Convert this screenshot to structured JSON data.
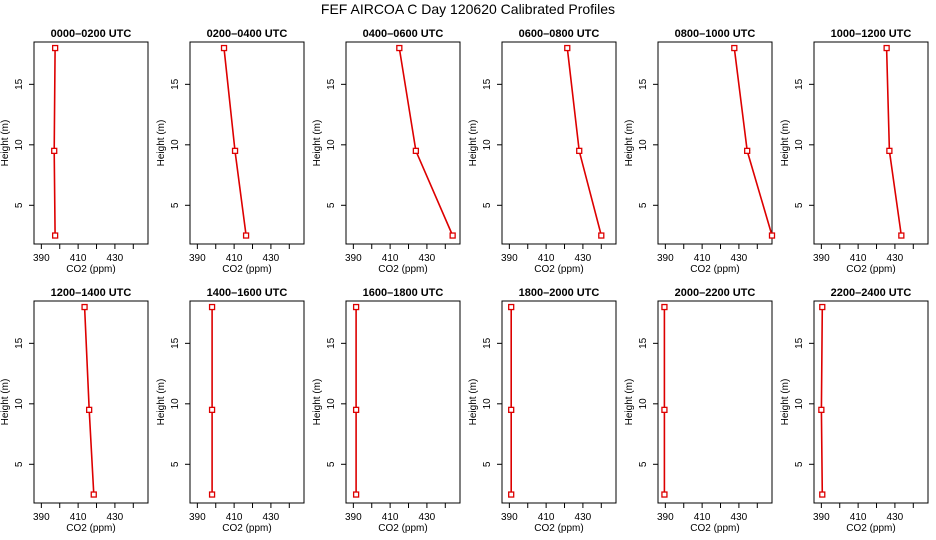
{
  "page": {
    "title": "FEF AIRCOA C  Day 120620  Calibrated Profiles"
  },
  "colors": {
    "series": "#dd0000",
    "axis": "#000000",
    "background": "#ffffff"
  },
  "chart_data": [
    {
      "type": "line",
      "title": "0000–0200 UTC",
      "xlabel": "CO2 (ppm)",
      "ylabel": "Height (m)",
      "xlim": [
        386,
        448
      ],
      "ylim": [
        1.8,
        18.5
      ],
      "xticks": [
        390,
        410,
        430
      ],
      "yticks": [
        5,
        10,
        15
      ],
      "grid": false,
      "series": [
        {
          "x": [
            397.5,
            397.0,
            397.5
          ],
          "y": [
            2.5,
            9.5,
            18.0
          ]
        }
      ]
    },
    {
      "type": "line",
      "title": "0200–0400 UTC",
      "xlabel": "CO2 (ppm)",
      "ylabel": "Height (m)",
      "xlim": [
        386,
        448
      ],
      "ylim": [
        1.8,
        18.5
      ],
      "xticks": [
        390,
        410,
        430
      ],
      "yticks": [
        5,
        10,
        15
      ],
      "grid": false,
      "series": [
        {
          "x": [
            416.5,
            410.5,
            404.5
          ],
          "y": [
            2.5,
            9.5,
            18.0
          ]
        }
      ]
    },
    {
      "type": "line",
      "title": "0400–0600 UTC",
      "xlabel": "CO2 (ppm)",
      "ylabel": "Height (m)",
      "xlim": [
        386,
        448
      ],
      "ylim": [
        1.8,
        18.5
      ],
      "xticks": [
        390,
        410,
        430
      ],
      "yticks": [
        5,
        10,
        15
      ],
      "grid": false,
      "series": [
        {
          "x": [
            444.0,
            424.0,
            415.0
          ],
          "y": [
            2.5,
            9.5,
            18.0
          ]
        }
      ]
    },
    {
      "type": "line",
      "title": "0600–0800 UTC",
      "xlabel": "CO2 (ppm)",
      "ylabel": "Height (m)",
      "xlim": [
        386,
        448
      ],
      "ylim": [
        1.8,
        18.5
      ],
      "xticks": [
        390,
        410,
        430
      ],
      "yticks": [
        5,
        10,
        15
      ],
      "grid": false,
      "series": [
        {
          "x": [
            440.0,
            428.0,
            421.5
          ],
          "y": [
            2.5,
            9.5,
            18.0
          ]
        }
      ]
    },
    {
      "type": "line",
      "title": "0800–1000 UTC",
      "xlabel": "CO2 (ppm)",
      "ylabel": "Height (m)",
      "xlim": [
        386,
        448
      ],
      "ylim": [
        1.8,
        18.5
      ],
      "xticks": [
        390,
        410,
        430
      ],
      "yticks": [
        5,
        10,
        15
      ],
      "grid": false,
      "series": [
        {
          "x": [
            448.0,
            434.5,
            427.5
          ],
          "y": [
            2.5,
            9.5,
            18.0
          ]
        }
      ]
    },
    {
      "type": "line",
      "title": "1000–1200 UTC",
      "xlabel": "CO2 (ppm)",
      "ylabel": "Height (m)",
      "xlim": [
        386,
        448
      ],
      "ylim": [
        1.8,
        18.5
      ],
      "xticks": [
        390,
        410,
        430
      ],
      "yticks": [
        5,
        10,
        15
      ],
      "grid": false,
      "series": [
        {
          "x": [
            433.5,
            427.0,
            425.5
          ],
          "y": [
            2.5,
            9.5,
            18.0
          ]
        }
      ]
    },
    {
      "type": "line",
      "title": "1200–1400 UTC",
      "xlabel": "CO2 (ppm)",
      "ylabel": "Height (m)",
      "xlim": [
        386,
        448
      ],
      "ylim": [
        1.8,
        18.5
      ],
      "xticks": [
        390,
        410,
        430
      ],
      "yticks": [
        5,
        10,
        15
      ],
      "grid": false,
      "series": [
        {
          "x": [
            418.5,
            416.0,
            413.5
          ],
          "y": [
            2.5,
            9.5,
            18.0
          ]
        }
      ]
    },
    {
      "type": "line",
      "title": "1400–1600 UTC",
      "xlabel": "CO2 (ppm)",
      "ylabel": "Height (m)",
      "xlim": [
        386,
        448
      ],
      "ylim": [
        1.8,
        18.5
      ],
      "xticks": [
        390,
        410,
        430
      ],
      "yticks": [
        5,
        10,
        15
      ],
      "grid": false,
      "series": [
        {
          "x": [
            398.0,
            398.0,
            398.0
          ],
          "y": [
            2.5,
            9.5,
            18.0
          ]
        }
      ]
    },
    {
      "type": "line",
      "title": "1600–1800 UTC",
      "xlabel": "CO2 (ppm)",
      "ylabel": "Height (m)",
      "xlim": [
        386,
        448
      ],
      "ylim": [
        1.8,
        18.5
      ],
      "xticks": [
        390,
        410,
        430
      ],
      "yticks": [
        5,
        10,
        15
      ],
      "grid": false,
      "series": [
        {
          "x": [
            391.5,
            391.5,
            391.5
          ],
          "y": [
            2.5,
            9.5,
            18.0
          ]
        }
      ]
    },
    {
      "type": "line",
      "title": "1800–2000 UTC",
      "xlabel": "CO2 (ppm)",
      "ylabel": "Height (m)",
      "xlim": [
        386,
        448
      ],
      "ylim": [
        1.8,
        18.5
      ],
      "xticks": [
        390,
        410,
        430
      ],
      "yticks": [
        5,
        10,
        15
      ],
      "grid": false,
      "series": [
        {
          "x": [
            391.0,
            391.0,
            391.0
          ],
          "y": [
            2.5,
            9.5,
            18.0
          ]
        }
      ]
    },
    {
      "type": "line",
      "title": "2000–2200 UTC",
      "xlabel": "CO2 (ppm)",
      "ylabel": "Height (m)",
      "xlim": [
        386,
        448
      ],
      "ylim": [
        1.8,
        18.5
      ],
      "xticks": [
        390,
        410,
        430
      ],
      "yticks": [
        5,
        10,
        15
      ],
      "grid": false,
      "series": [
        {
          "x": [
            389.5,
            389.5,
            389.5
          ],
          "y": [
            2.5,
            9.5,
            18.0
          ]
        }
      ]
    },
    {
      "type": "line",
      "title": "2200–2400 UTC",
      "xlabel": "CO2 (ppm)",
      "ylabel": "Height (m)",
      "xlim": [
        386,
        448
      ],
      "ylim": [
        1.8,
        18.5
      ],
      "xticks": [
        390,
        410,
        430
      ],
      "yticks": [
        5,
        10,
        15
      ],
      "grid": false,
      "series": [
        {
          "x": [
            390.5,
            390.0,
            390.5
          ],
          "y": [
            2.5,
            9.5,
            18.0
          ]
        }
      ]
    }
  ]
}
